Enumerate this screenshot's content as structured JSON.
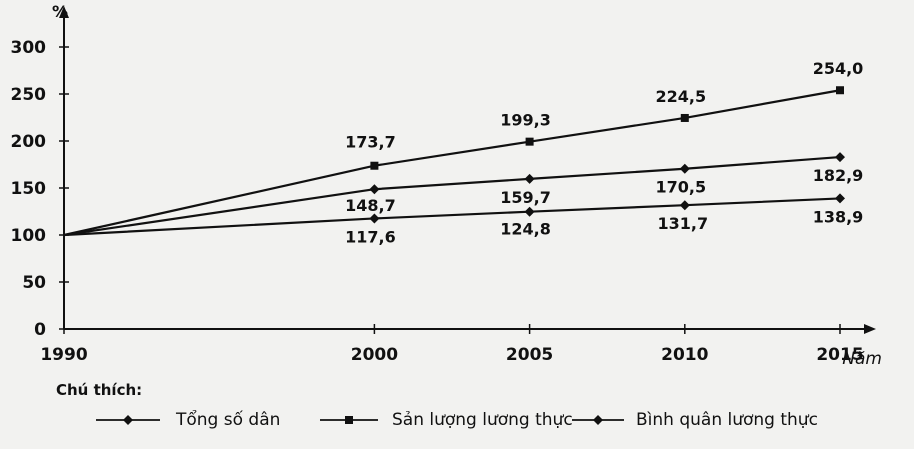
{
  "chart_data": {
    "type": "line",
    "y_unit_label": "%",
    "xlabel": "Năm",
    "x": [
      1990,
      2000,
      2005,
      2010,
      2015
    ],
    "ylim": [
      0,
      300
    ],
    "yticks": [
      0,
      50,
      100,
      150,
      200,
      250,
      300
    ],
    "grid": false,
    "legend_title": "Chú thích:",
    "legend_position": "bottom",
    "series": [
      {
        "name": "Tổng số dân",
        "marker": "diamond",
        "values": [
          100,
          117.6,
          124.8,
          131.7,
          138.9
        ],
        "labels": [
          "",
          "117,6",
          "124,8",
          "131,7",
          "138,9"
        ]
      },
      {
        "name": "Sản lượng lương thực",
        "marker": "square",
        "values": [
          100,
          173.7,
          199.3,
          224.5,
          254.0
        ],
        "labels": [
          "",
          "173,7",
          "199,3",
          "224,5",
          "254,0"
        ]
      },
      {
        "name": "Bình quân lương thực",
        "marker": "diamond",
        "values": [
          100,
          148.7,
          159.7,
          170.5,
          182.9
        ],
        "labels": [
          "",
          "148,7",
          "159,7",
          "170,5",
          "182,9"
        ]
      }
    ]
  }
}
